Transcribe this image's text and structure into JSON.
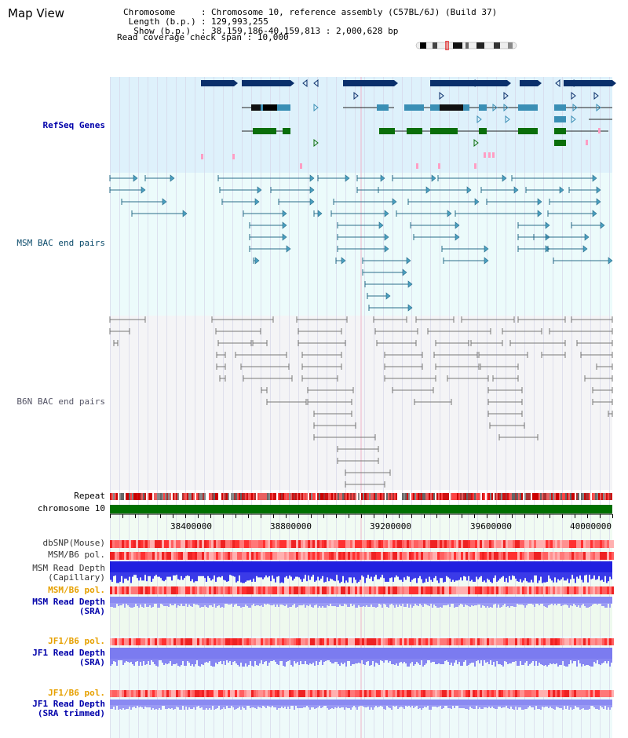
{
  "window": {
    "title": "Map View"
  },
  "info": {
    "chromosome_label": "Chromosome",
    "chromosome_value": "Chromosome 10, reference assembly (C57BL/6J) (Build 37)",
    "length_label": "Length (b.p.)",
    "length_value": "129,993,255",
    "show_label": "Show (b.p.)",
    "show_value": "38,159,186-40,159,813 : 2,000,628 bp",
    "coverage_label": "Read coverage check span",
    "coverage_value": "10,000"
  },
  "tracks": {
    "refseq": "RefSeq Genes",
    "msm_bac": "MSM BAC end pairs",
    "b6n_bac": "B6N BAC end pairs",
    "repeat": "Repeat",
    "chromosome": "chromosome 10",
    "dbsnp": "dbSNP(Mouse)",
    "msm_b6_pol": "MSM/B6 pol.",
    "msm_depth_cap_1": "MSM Read Depth",
    "msm_depth_cap_2": "(Capillary)",
    "msm_b6_pol2": "MSM/B6 pol.",
    "msm_depth_sra_1": "MSM Read Depth",
    "msm_depth_sra_2": "(SRA)",
    "jf1_b6_pol": "JF1/B6 pol.",
    "jf1_depth_1": "JF1 Read Depth",
    "jf1_depth_2": "(SRA)",
    "jf1_b6_pol2": "JF1/B6 pol.",
    "jf1_trim_1": "JF1 Read Depth",
    "jf1_trim_2": "(SRA trimmed)"
  },
  "axis": {
    "ticks": [
      "38400000",
      "38800000",
      "39200000",
      "39600000",
      "40000000"
    ]
  },
  "colors": {
    "label_blue": "#0000aa",
    "label_orange": "#e6a000",
    "refseq_bg": "#def1fb",
    "msm_bg": "#ecfbfb",
    "b6n_bg": "#f4f4f6",
    "gene_navy": "#0a2f6b",
    "gene_teal": "#3a8fb5",
    "gene_green": "#0a6e0a",
    "chromosome_bar": "#007000",
    "depth_blue": "#2020e0",
    "depth_light": "#7b7bf0"
  }
}
